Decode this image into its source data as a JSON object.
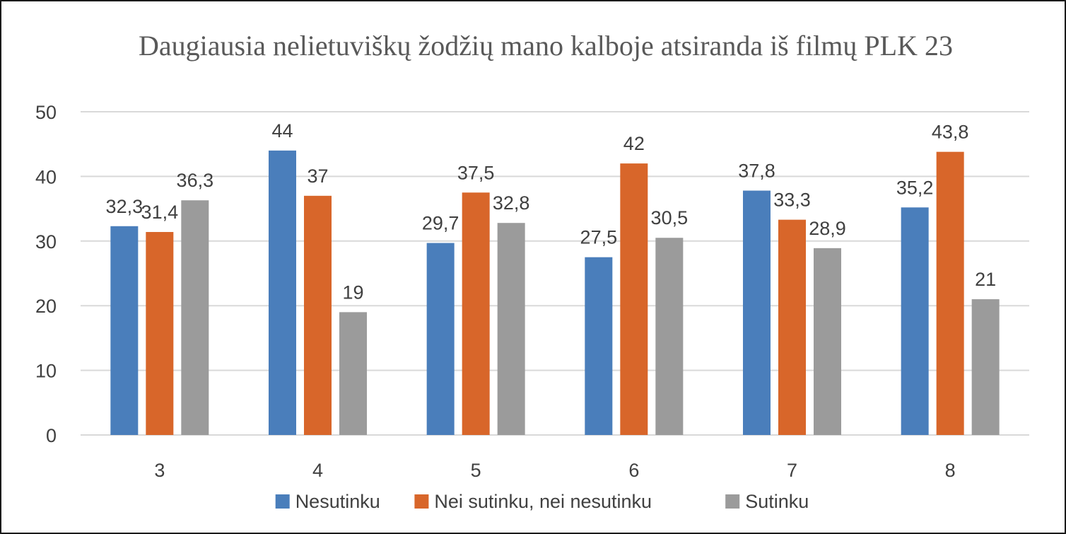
{
  "chart_data": {
    "type": "bar",
    "title": "Daugiausia nelietuviškų žodžių mano kalboje atsiranda iš filmų PLK 23",
    "xlabel": "",
    "ylabel": "",
    "ylim": [
      0,
      50
    ],
    "yticks": [
      "0",
      "10",
      "20",
      "30",
      "40",
      "50"
    ],
    "categories": [
      "3",
      "4",
      "5",
      "6",
      "7",
      "8"
    ],
    "grid": true,
    "legend_position": "bottom",
    "series": [
      {
        "name": "Nesutinku",
        "color": "#4a7ebb",
        "values": [
          32.3,
          44,
          29.7,
          27.5,
          37.8,
          35.2
        ],
        "labels": [
          "32,3",
          "44",
          "29,7",
          "27,5",
          "37,8",
          "35,2"
        ]
      },
      {
        "name": "Nei sutinku, nei nesutinku",
        "color": "#d8662a",
        "values": [
          31.4,
          37,
          37.5,
          42,
          33.3,
          43.8
        ],
        "labels": [
          "31,4",
          "37",
          "37,5",
          "42",
          "33,3",
          "43,8"
        ]
      },
      {
        "name": "Sutinku",
        "color": "#9b9b9b",
        "values": [
          36.3,
          19,
          32.8,
          30.5,
          28.9,
          21
        ],
        "labels": [
          "36,3",
          "19",
          "32,8",
          "30,5",
          "28,9",
          "21"
        ]
      }
    ]
  }
}
